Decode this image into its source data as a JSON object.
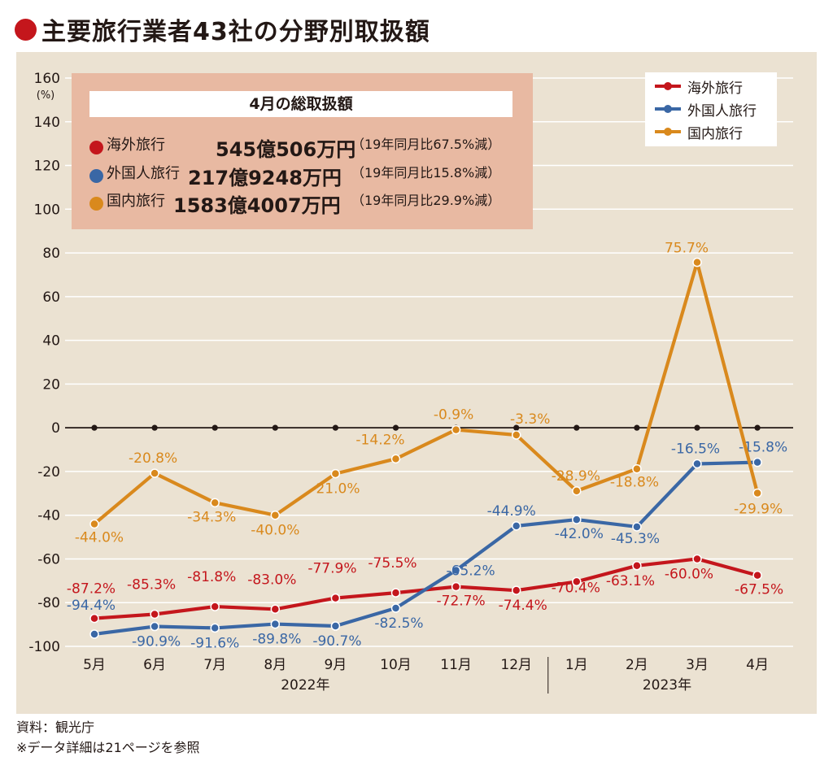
{
  "title": "主要旅行業者43社の分野別取扱額",
  "colors": {
    "overseas": "#c4161c",
    "inbound": "#3a67a5",
    "domestic": "#d9891d",
    "title_dot": "#c4161c"
  },
  "infobox": {
    "heading": "4月の総取扱額",
    "rows": [
      {
        "label": "海外旅行",
        "amount": "545億506万円",
        "comparison": "（19年同月比67.5%減）"
      },
      {
        "label": "外国人旅行",
        "amount": "217億9248万円",
        "comparison": "（19年同月比15.8%減）"
      },
      {
        "label": "国内旅行",
        "amount": "1583億4007万円",
        "comparison": "（19年同月比29.9%減）"
      }
    ]
  },
  "footer": {
    "source": "資料：観光庁",
    "note": "※データ詳細は21ページを参照"
  },
  "chart_data": {
    "type": "line",
    "unit_label": "(%)",
    "ylim": [
      -100,
      160
    ],
    "yticks": [
      -100,
      -80,
      -60,
      -40,
      -20,
      0,
      20,
      40,
      60,
      80,
      100,
      120,
      140,
      160
    ],
    "categories": [
      "5月",
      "6月",
      "7月",
      "8月",
      "9月",
      "10月",
      "11月",
      "12月",
      "1月",
      "2月",
      "3月",
      "4月"
    ],
    "year_labels": [
      {
        "label": "2022年",
        "from": 0,
        "to": 7
      },
      {
        "label": "2023年",
        "from": 8,
        "to": 11
      }
    ],
    "grid": true,
    "legend_position": "top-right",
    "zero_line": true,
    "series": [
      {
        "name": "海外旅行",
        "key": "overseas",
        "values": [
          -87.2,
          -85.3,
          -81.8,
          -83.0,
          -77.9,
          -75.5,
          -72.7,
          -74.4,
          -70.4,
          -63.1,
          -60.0,
          -67.5
        ],
        "labels": [
          "-87.2%",
          "-85.3%",
          "-81.8%",
          "-83.0%",
          "-77.9%",
          "-75.5%",
          "-72.7%",
          "-74.4%",
          "-70.4%",
          "-63.1%",
          "-60.0%",
          "-67.5%"
        ]
      },
      {
        "name": "外国人旅行",
        "key": "inbound",
        "values": [
          -94.4,
          -90.9,
          -91.6,
          -89.8,
          -90.7,
          -82.5,
          -65.2,
          -44.9,
          -42.0,
          -45.3,
          -16.5,
          -15.8
        ],
        "labels": [
          "-94.4%",
          "-90.9%",
          "-91.6%",
          "-89.8%",
          "-90.7%",
          "-82.5%",
          "-65.2%",
          "-44.9%",
          "-42.0%",
          "-45.3%",
          "-16.5%",
          "-15.8%"
        ]
      },
      {
        "name": "国内旅行",
        "key": "domestic",
        "values": [
          -44.0,
          -20.8,
          -34.3,
          -40.0,
          -21.0,
          -14.2,
          -0.9,
          -3.3,
          -28.9,
          -18.8,
          75.7,
          -29.9
        ],
        "labels": [
          "-44.0%",
          "-20.8%",
          "-34.3%",
          "-40.0%",
          "-21.0%",
          "-14.2%",
          "-0.9%",
          "-3.3%",
          "-28.9%",
          "-18.8%",
          "75.7%",
          "-29.9%"
        ]
      }
    ]
  }
}
